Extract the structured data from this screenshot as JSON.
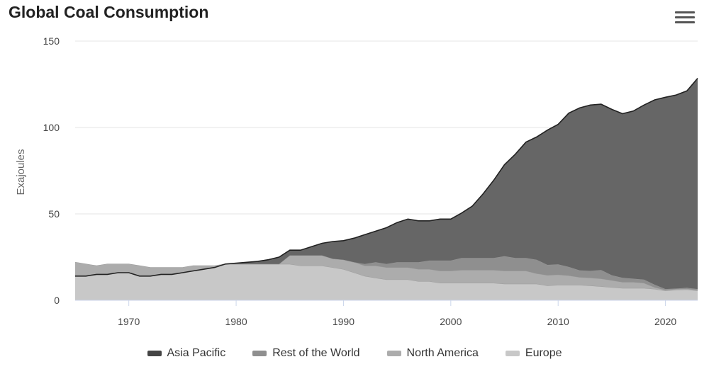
{
  "chart_data": {
    "type": "area",
    "stacked": true,
    "title": "Global Coal Consumption",
    "ylabel": "Exajoules",
    "xlabel": "",
    "xlim": [
      1965,
      2023
    ],
    "ylim": [
      0,
      150
    ],
    "yticks": [
      0,
      50,
      100,
      150
    ],
    "xticks": [
      1970,
      1980,
      1990,
      2000,
      2010,
      2020
    ],
    "grid": true,
    "legend_position": "bottom",
    "years": [
      1965,
      1966,
      1967,
      1968,
      1969,
      1970,
      1971,
      1972,
      1973,
      1974,
      1975,
      1976,
      1977,
      1978,
      1979,
      1980,
      1981,
      1982,
      1983,
      1984,
      1985,
      1986,
      1987,
      1988,
      1989,
      1990,
      1991,
      1992,
      1993,
      1994,
      1995,
      1996,
      1997,
      1998,
      1999,
      2000,
      2001,
      2002,
      2003,
      2004,
      2005,
      2006,
      2007,
      2008,
      2009,
      2010,
      2011,
      2012,
      2013,
      2014,
      2015,
      2016,
      2017,
      2018,
      2019,
      2020,
      2021,
      2022,
      2023
    ],
    "series": [
      {
        "name": "Europe",
        "color": "#c8c8c8",
        "values": [
          22,
          21,
          20,
          21,
          21,
          21,
          20,
          19,
          19,
          19,
          19,
          20,
          20,
          20,
          21,
          21,
          21,
          21,
          21,
          21,
          21,
          20,
          20,
          20,
          19,
          18,
          16,
          14,
          13,
          12,
          12,
          12,
          11,
          11,
          10,
          10,
          10,
          10,
          10,
          10,
          9.5,
          9.5,
          9.5,
          9.5,
          8.5,
          8.8,
          8.8,
          8.8,
          8.5,
          8,
          7.5,
          7,
          7,
          7,
          6.5,
          5.5,
          6,
          6.2,
          5.5
        ]
      },
      {
        "name": "North America",
        "color": "#acacac",
        "values": [
          -8,
          -7,
          -5,
          -6,
          -5,
          -5,
          -6,
          -5,
          -4,
          -4,
          -3,
          -3,
          -2,
          -1,
          0,
          0,
          0,
          0,
          0,
          0,
          5,
          6,
          6,
          6,
          5,
          5.5,
          6,
          6,
          7,
          7,
          7,
          7,
          7,
          7,
          7,
          7,
          7.5,
          7.5,
          7.5,
          7.5,
          7.5,
          7.5,
          7.5,
          6,
          6,
          6,
          5.5,
          4.5,
          4.5,
          4.5,
          4,
          3.5,
          3.5,
          3,
          1,
          0.5,
          0.5,
          0.5,
          0.5
        ]
      },
      {
        "name": "Rest of the World",
        "color": "#8f8f8f",
        "values": [
          0,
          0,
          0,
          0,
          0,
          0,
          0,
          0,
          0,
          0,
          0,
          0,
          0,
          0,
          0,
          0,
          0,
          0,
          0,
          0,
          0,
          0,
          0,
          0,
          0,
          0,
          0,
          1,
          2,
          2,
          3,
          3,
          4,
          5,
          6,
          6,
          7,
          7,
          7,
          7,
          8.5,
          7.5,
          7.5,
          8,
          6,
          6,
          5,
          4,
          4,
          5,
          3,
          2.5,
          2,
          2,
          1.5,
          0.5,
          0.3,
          0.5,
          0.5
        ]
      },
      {
        "name": "Asia Pacific",
        "color": "#666666",
        "values": [
          0,
          0,
          0,
          0,
          0,
          0,
          0,
          0,
          0,
          0,
          0,
          0,
          0,
          0,
          0,
          0.5,
          1,
          1.5,
          2.5,
          4,
          3,
          3,
          5,
          7,
          10,
          11,
          14,
          17,
          18,
          21,
          23,
          25,
          24,
          23,
          24,
          24,
          26,
          30,
          37,
          45,
          53,
          60,
          67,
          71,
          78,
          81,
          89,
          94,
          96,
          96,
          96,
          95,
          97,
          101,
          107,
          111,
          112,
          114,
          122
        ]
      }
    ]
  }
}
